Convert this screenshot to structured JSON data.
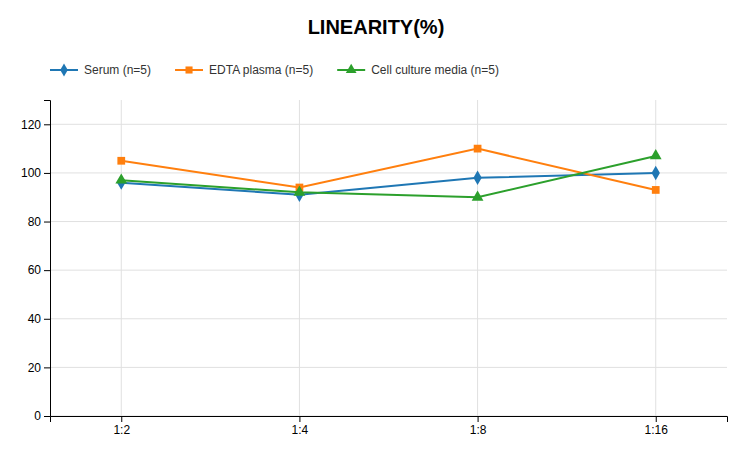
{
  "chart_data": {
    "type": "line",
    "title": "LINEARITY(%)",
    "categories": [
      "1:2",
      "1:4",
      "1:8",
      "1:16"
    ],
    "series": [
      {
        "name": "Serum (n=5)",
        "values": [
          96,
          91,
          98,
          100
        ],
        "marker": "diamond"
      },
      {
        "name": "EDTA plasma (n=5)",
        "values": [
          105,
          94,
          110,
          93
        ],
        "marker": "square"
      },
      {
        "name": "Cell culture media (n=5)",
        "values": [
          97,
          92,
          90,
          107
        ],
        "marker": "triangle"
      }
    ],
    "ylim": [
      0,
      130
    ],
    "yticks": [
      0,
      20,
      40,
      60,
      80,
      100,
      120
    ],
    "grid": true,
    "legend": "top"
  }
}
